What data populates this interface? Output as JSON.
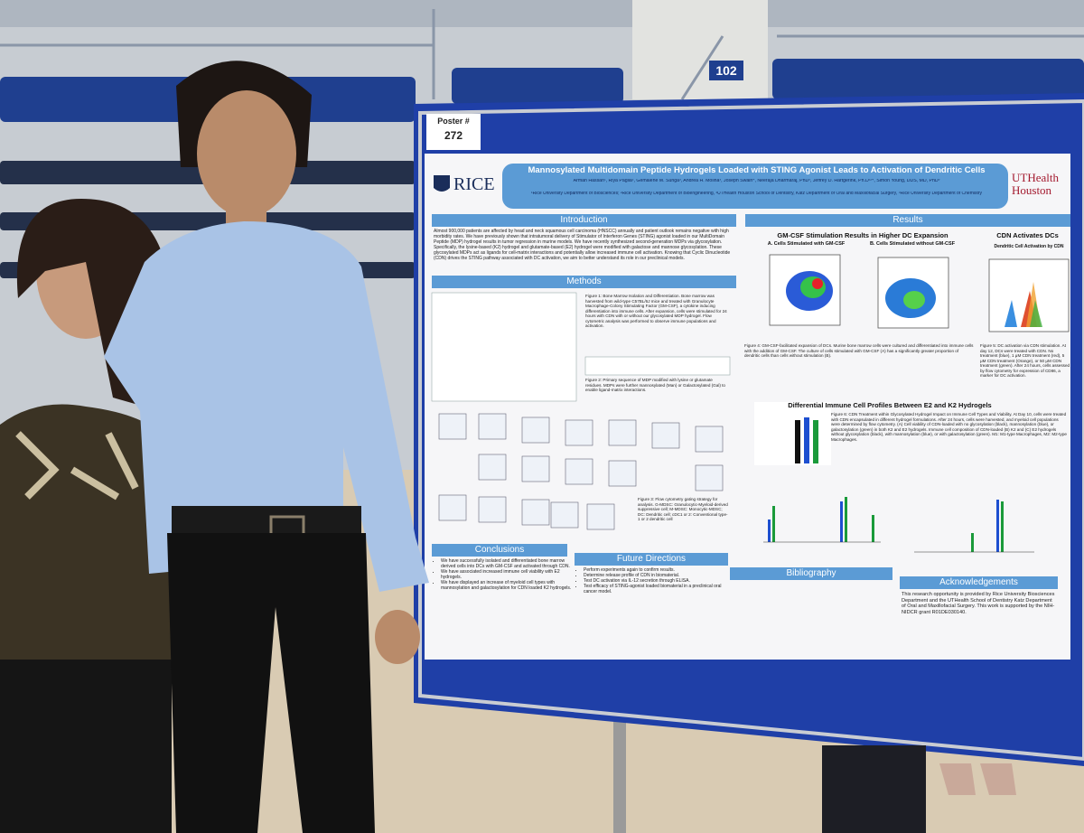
{
  "section_sign": "102",
  "poster_tag": {
    "label": "Poster #",
    "number": "272"
  },
  "poster": {
    "logos": {
      "left": "RICE",
      "right": "UTHealth Houston"
    },
    "title": "Mannosylated Multidomain Peptide Hydrogels Loaded with STING Agonist Leads to Activation of Dendritic Cells",
    "authors": "Arman Hassan¹, Riya Pagila², Gemalene M. Sunga³, Andrea H. Molina³, Joseph Swain⁴, Neeraja Dharmaraj, PhD³, Jeffrey D. Hartgerink, Ph.D¹²⁴, Simon Young, DDS, MD, PhD³",
    "affiliations": "¹Rice University Department of Biosciences; ²Rice University Department of Bioengineering, ³UTHealth Houston School of Dentistry, Katz Department of Oral and Maxillofacial Surgery, ⁴Rice University Department of Chemistry",
    "introduction": {
      "heading": "Introduction",
      "text": "Almost 900,000 patients are affected by head and neck squamous cell carcinoma (HNSCC) annually and patient outlook remains negative with high morbidity rates. We have previously shown that intratumoral delivery of Stimulator of Interferon Genes (STING) agonist loaded in our MultiDomain Peptide (MDP) hydrogel results in tumor regression in murine models. We have recently synthesized second-generation MDPs via glycosylation. Specifically, the lysine-based (K2) hydrogel and glutamate-based (E2) hydrogel were modified with galactose and mannose glycosylation. These glycosylated MDPs act as ligands for cell-matrix interactions and potentially allow increased immune cell activation. Knowing that Cyclic Dinucleotide (CDN) drives the STING pathway associated with DC activation, we aim to better understand its role in our preclinical models."
    },
    "methods": {
      "heading": "Methods",
      "figure1": "Figure 1: Bone Marrow Isolation and Differentiation. Bone marrow was harvested from wild-type C57BL/6J mice and treated with Granulocyte Macrophage-Colony Stimulating Factor (GM-CSF), a cytokine inducing differentiation into immune cells. After expansion, cells were stimulated for 24 hours with CDN with or without our glycosylated MDP hydrogel. Flow cytometric analysis was performed to observe immune populations and activation.",
      "figure2": "Figure 2: Primary sequence of MDP modified with lysine or glutamate residues. MDPs were further mannosylated (Man) or Galactosylated (Gal) to enable ligand-matrix interactions.",
      "figure3": "Figure 3: Flow cytometry gating strategy for analysis. G-MDSC: Granulocytic-Myeloid-derived suppressive cell; M-MDSC: Monocytic-MDSC; DC: Dendritic cell; cDC1 or 2: Conventional type-1 or 2 dendritic cell"
    },
    "results": {
      "heading": "Results",
      "gmcsf_heading": "GM-CSF Stimulation Results in Higher DC Expansion",
      "panel_a": "A. Cells Stimulated with GM-CSF",
      "panel_b": "B. Cells Stimulated without GM-CSF",
      "cdn_heading": "CDN Activates DCs",
      "cdn_panel": "Dendritic Cell Activation by CDN",
      "figure4": "Figure 4: GM-CSF-facilitated expansion of DCs. Murine bone marrow cells were cultured and differentiated into immune cells with the addition of GM-CSF. The culture of cells stimulated with GM-CSF (A) has a significantly greater proportion of dendritic cells than cells without stimulation (B).",
      "figure5": "Figure 5: DC activation via CDN stimulation. At day 12, DCs were treated with CDN. No treatment (blue), 1 μM CDN treatment (red), 5 μM CDN treatment (Orange), or 50 μM CDN treatment (green). After 24 hours, cells assessed by flow cytometry for expression of CD86, a marker for DC activation.",
      "profiles_heading": "Differential Immune Cell Profiles Between E2 and K2 Hydrogels",
      "figure6": "Figure 6: CDN Treatment within Glycosylated Hydrogel Impact on Immune Cell Types and Viability. At Day 10, cells were treated with CDN encapsulated in different hydrogel formulations. After 24 hours, cells were harvested, and myeloid cell populations were determined by flow cytometry. (A) Cell viability of CDN-loaded with no glycosylation (black), mannosylation (blue), or galactosylation (green) in both K2 and E2 hydrogels. Immune cell composition of CDN-loaded (B) K2 and (C) E2 hydrogels without glycosylation (black), with mannosylation (blue), or with galactosylation (green). M1: M1-type Macrophages, M2: M2-type Macrophages."
    },
    "conclusions": {
      "heading": "Conclusions",
      "items": [
        "We have successfully isolated and differentiated bone marrow derived cells into DCs with GM-CSF and activated through CDN.",
        "We have associated increased immune cell viability with E2 hydrogels.",
        "We have displayed an increase of myeloid cell types with mannosylation and galactosylation for CDN loaded K2 hydrogels."
      ]
    },
    "future_directions": {
      "heading": "Future Directions",
      "items": [
        "Perform experiments again to confirm results.",
        "Determine release profile of CDN in biomaterial.",
        "Test DC activation via IL-12 secretion through ELISA.",
        "Test efficacy of STING-agonist loaded biomaterial in a preclinical oral cancer model."
      ]
    },
    "bibliography": {
      "heading": "Bibliography"
    },
    "acknowledgements": {
      "heading": "Acknowledgements",
      "text": "This research opportunity is provided by Rice University Biosciences Department and the UTHealth School of Dentistry Katz Department of Oral and Maxillofacial Surgery. This work is supported by the NIH-NIDCR grant R01DE030140."
    }
  }
}
